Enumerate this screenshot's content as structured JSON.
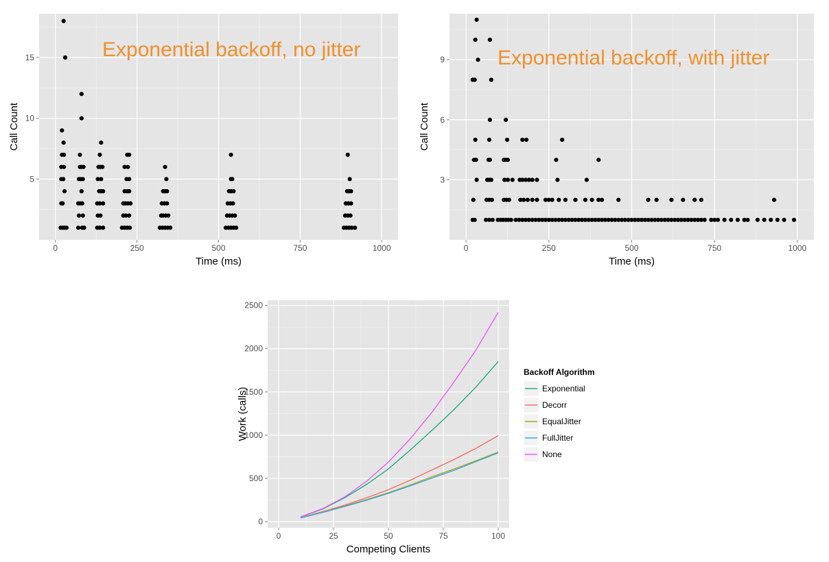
{
  "chart_data": [
    {
      "type": "scatter",
      "title": "Exponential backoff, no jitter",
      "xlabel": "Time (ms)",
      "ylabel": "Call Count",
      "xlim": [
        -50,
        1050
      ],
      "ylim": [
        0,
        18.6
      ],
      "x_ticks": [
        0,
        250,
        500,
        750,
        1000
      ],
      "y_ticks": [
        5,
        10,
        15
      ],
      "grid": true,
      "title_color": "#f0902b",
      "point_color": "#000000",
      "points": [
        [
          25,
          18
        ],
        [
          30,
          15
        ],
        [
          20,
          9
        ],
        [
          25,
          8
        ],
        [
          20,
          7
        ],
        [
          26,
          7
        ],
        [
          18,
          6
        ],
        [
          26,
          6
        ],
        [
          18,
          5
        ],
        [
          24,
          5
        ],
        [
          28,
          4
        ],
        [
          18,
          3
        ],
        [
          22,
          3
        ],
        [
          16,
          1
        ],
        [
          22,
          1
        ],
        [
          28,
          1
        ],
        [
          34,
          1
        ],
        [
          80,
          12
        ],
        [
          80,
          10
        ],
        [
          75,
          7
        ],
        [
          75,
          6
        ],
        [
          80,
          6
        ],
        [
          86,
          6
        ],
        [
          72,
          5
        ],
        [
          78,
          5
        ],
        [
          84,
          5
        ],
        [
          80,
          4
        ],
        [
          70,
          3
        ],
        [
          76,
          3
        ],
        [
          82,
          3
        ],
        [
          72,
          2
        ],
        [
          84,
          2
        ],
        [
          70,
          1
        ],
        [
          82,
          1
        ],
        [
          88,
          1
        ],
        [
          140,
          8
        ],
        [
          136,
          7
        ],
        [
          132,
          6
        ],
        [
          138,
          6
        ],
        [
          144,
          6
        ],
        [
          130,
          5
        ],
        [
          140,
          5
        ],
        [
          134,
          4
        ],
        [
          140,
          4
        ],
        [
          146,
          4
        ],
        [
          128,
          3
        ],
        [
          136,
          3
        ],
        [
          146,
          3
        ],
        [
          130,
          2
        ],
        [
          138,
          2
        ],
        [
          128,
          1
        ],
        [
          136,
          1
        ],
        [
          146,
          1
        ],
        [
          220,
          7
        ],
        [
          226,
          7
        ],
        [
          212,
          6
        ],
        [
          222,
          6
        ],
        [
          218,
          5
        ],
        [
          226,
          5
        ],
        [
          212,
          4
        ],
        [
          220,
          4
        ],
        [
          226,
          4
        ],
        [
          208,
          3
        ],
        [
          214,
          3
        ],
        [
          222,
          3
        ],
        [
          230,
          3
        ],
        [
          208,
          2
        ],
        [
          216,
          2
        ],
        [
          226,
          2
        ],
        [
          204,
          1
        ],
        [
          212,
          1
        ],
        [
          220,
          1
        ],
        [
          228,
          1
        ],
        [
          336,
          6
        ],
        [
          340,
          5
        ],
        [
          330,
          4
        ],
        [
          336,
          4
        ],
        [
          342,
          4
        ],
        [
          326,
          3
        ],
        [
          334,
          3
        ],
        [
          342,
          3
        ],
        [
          324,
          2
        ],
        [
          330,
          2
        ],
        [
          338,
          2
        ],
        [
          346,
          2
        ],
        [
          320,
          1
        ],
        [
          328,
          1
        ],
        [
          336,
          1
        ],
        [
          344,
          1
        ],
        [
          352,
          1
        ],
        [
          538,
          7
        ],
        [
          538,
          5
        ],
        [
          542,
          5
        ],
        [
          532,
          4
        ],
        [
          538,
          4
        ],
        [
          546,
          4
        ],
        [
          528,
          3
        ],
        [
          536,
          3
        ],
        [
          544,
          3
        ],
        [
          526,
          2
        ],
        [
          534,
          2
        ],
        [
          542,
          2
        ],
        [
          550,
          2
        ],
        [
          522,
          1
        ],
        [
          530,
          1
        ],
        [
          538,
          1
        ],
        [
          546,
          1
        ],
        [
          554,
          1
        ],
        [
          896,
          7
        ],
        [
          902,
          5
        ],
        [
          894,
          4
        ],
        [
          900,
          4
        ],
        [
          906,
          4
        ],
        [
          890,
          3
        ],
        [
          898,
          3
        ],
        [
          906,
          3
        ],
        [
          888,
          2
        ],
        [
          896,
          2
        ],
        [
          904,
          2
        ],
        [
          884,
          1
        ],
        [
          892,
          1
        ],
        [
          900,
          1
        ],
        [
          908,
          1
        ],
        [
          918,
          1
        ]
      ]
    },
    {
      "type": "scatter",
      "title": "Exponential backoff, with jitter",
      "xlabel": "Time (ms)",
      "ylabel": "Call Count",
      "xlim": [
        -50,
        1050
      ],
      "ylim": [
        0,
        11.3
      ],
      "x_ticks": [
        0,
        250,
        500,
        750,
        1000
      ],
      "y_ticks": [
        3,
        6,
        9
      ],
      "grid": true,
      "title_color": "#f0902b",
      "point_color": "#000000",
      "points": [
        [
          32,
          11
        ],
        [
          28,
          10
        ],
        [
          72,
          10
        ],
        [
          36,
          9
        ],
        [
          20,
          8
        ],
        [
          26,
          8
        ],
        [
          76,
          8
        ],
        [
          72,
          6
        ],
        [
          120,
          6
        ],
        [
          28,
          5
        ],
        [
          70,
          5
        ],
        [
          124,
          5
        ],
        [
          170,
          5
        ],
        [
          182,
          5
        ],
        [
          290,
          5
        ],
        [
          24,
          4
        ],
        [
          30,
          4
        ],
        [
          68,
          4
        ],
        [
          72,
          4
        ],
        [
          114,
          4
        ],
        [
          120,
          4
        ],
        [
          126,
          4
        ],
        [
          272,
          4
        ],
        [
          400,
          4
        ],
        [
          32,
          3
        ],
        [
          64,
          3
        ],
        [
          70,
          3
        ],
        [
          76,
          3
        ],
        [
          116,
          3
        ],
        [
          126,
          3
        ],
        [
          140,
          3
        ],
        [
          162,
          3
        ],
        [
          170,
          3
        ],
        [
          180,
          3
        ],
        [
          190,
          3
        ],
        [
          200,
          3
        ],
        [
          214,
          3
        ],
        [
          276,
          3
        ],
        [
          364,
          3
        ],
        [
          22,
          2
        ],
        [
          62,
          2
        ],
        [
          70,
          2
        ],
        [
          78,
          2
        ],
        [
          114,
          2
        ],
        [
          122,
          2
        ],
        [
          130,
          2
        ],
        [
          164,
          2
        ],
        [
          174,
          2
        ],
        [
          186,
          2
        ],
        [
          200,
          2
        ],
        [
          214,
          2
        ],
        [
          240,
          2
        ],
        [
          250,
          2
        ],
        [
          260,
          2
        ],
        [
          280,
          2
        ],
        [
          300,
          2
        ],
        [
          330,
          2
        ],
        [
          360,
          2
        ],
        [
          380,
          2
        ],
        [
          400,
          2
        ],
        [
          410,
          2
        ],
        [
          460,
          2
        ],
        [
          550,
          2
        ],
        [
          575,
          2
        ],
        [
          620,
          2
        ],
        [
          655,
          2
        ],
        [
          690,
          2
        ],
        [
          710,
          2
        ],
        [
          930,
          2
        ],
        [
          20,
          1
        ],
        [
          26,
          1
        ],
        [
          60,
          1
        ],
        [
          70,
          1
        ],
        [
          80,
          1
        ],
        [
          96,
          1
        ],
        [
          104,
          1
        ],
        [
          112,
          1
        ],
        [
          120,
          1
        ],
        [
          128,
          1
        ],
        [
          136,
          1
        ],
        [
          150,
          1
        ],
        [
          160,
          1
        ],
        [
          170,
          1
        ],
        [
          180,
          1
        ],
        [
          190,
          1
        ],
        [
          200,
          1
        ],
        [
          210,
          1
        ],
        [
          220,
          1
        ],
        [
          230,
          1
        ],
        [
          240,
          1
        ],
        [
          250,
          1
        ],
        [
          260,
          1
        ],
        [
          270,
          1
        ],
        [
          280,
          1
        ],
        [
          290,
          1
        ],
        [
          300,
          1
        ],
        [
          310,
          1
        ],
        [
          320,
          1
        ],
        [
          330,
          1
        ],
        [
          340,
          1
        ],
        [
          350,
          1
        ],
        [
          360,
          1
        ],
        [
          370,
          1
        ],
        [
          380,
          1
        ],
        [
          390,
          1
        ],
        [
          400,
          1
        ],
        [
          410,
          1
        ],
        [
          420,
          1
        ],
        [
          430,
          1
        ],
        [
          440,
          1
        ],
        [
          450,
          1
        ],
        [
          460,
          1
        ],
        [
          470,
          1
        ],
        [
          480,
          1
        ],
        [
          490,
          1
        ],
        [
          500,
          1
        ],
        [
          510,
          1
        ],
        [
          520,
          1
        ],
        [
          530,
          1
        ],
        [
          540,
          1
        ],
        [
          550,
          1
        ],
        [
          560,
          1
        ],
        [
          570,
          1
        ],
        [
          580,
          1
        ],
        [
          590,
          1
        ],
        [
          600,
          1
        ],
        [
          610,
          1
        ],
        [
          620,
          1
        ],
        [
          630,
          1
        ],
        [
          640,
          1
        ],
        [
          650,
          1
        ],
        [
          660,
          1
        ],
        [
          670,
          1
        ],
        [
          680,
          1
        ],
        [
          690,
          1
        ],
        [
          700,
          1
        ],
        [
          710,
          1
        ],
        [
          720,
          1
        ],
        [
          740,
          1
        ],
        [
          750,
          1
        ],
        [
          760,
          1
        ],
        [
          780,
          1
        ],
        [
          800,
          1
        ],
        [
          820,
          1
        ],
        [
          840,
          1
        ],
        [
          850,
          1
        ],
        [
          880,
          1
        ],
        [
          900,
          1
        ],
        [
          920,
          1
        ],
        [
          940,
          1
        ],
        [
          960,
          1
        ],
        [
          990,
          1
        ]
      ]
    },
    {
      "type": "line",
      "title": "",
      "xlabel": "Competing Clients",
      "ylabel": "Work (calls)",
      "xlim": [
        -5,
        105
      ],
      "ylim": [
        -70,
        2560
      ],
      "x_ticks": [
        0,
        25,
        50,
        75,
        100
      ],
      "y_ticks": [
        0,
        500,
        1000,
        1500,
        2000,
        2500
      ],
      "grid": true,
      "legend_title": "Backoff Algorithm",
      "legend_position": "right",
      "x": [
        10,
        20,
        30,
        40,
        50,
        60,
        70,
        80,
        90,
        100
      ],
      "series": [
        {
          "name": "Exponential",
          "color": "#1ab07c",
          "values": [
            55,
            145,
            275,
            430,
            610,
            830,
            1060,
            1300,
            1560,
            1850
          ]
        },
        {
          "name": "Decorr",
          "color": "#f36c6c",
          "values": [
            48,
            115,
            190,
            275,
            370,
            480,
            600,
            720,
            850,
            995
          ]
        },
        {
          "name": "EqualJitter",
          "color": "#a8a323",
          "values": [
            45,
            110,
            180,
            255,
            335,
            425,
            520,
            610,
            705,
            805
          ]
        },
        {
          "name": "FullJitter",
          "color": "#3ea7e0",
          "values": [
            43,
            106,
            175,
            248,
            328,
            415,
            505,
            595,
            695,
            795
          ]
        },
        {
          "name": "None",
          "color": "#e45ff0",
          "values": [
            55,
            150,
            285,
            465,
            690,
            960,
            1270,
            1620,
            1990,
            2420
          ]
        }
      ]
    }
  ]
}
